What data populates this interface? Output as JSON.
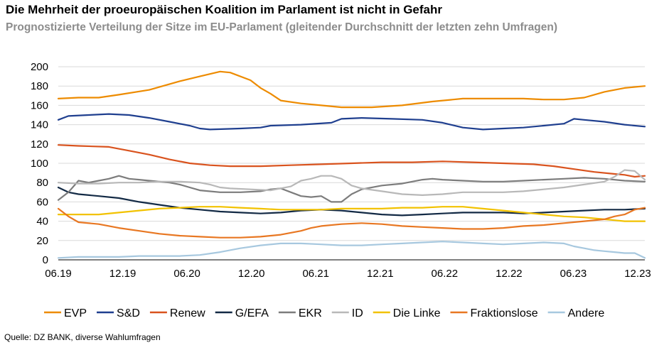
{
  "title": "Die Mehrheit der proeuropäischen Koalition im Parlament ist nicht in Gefahr",
  "subtitle": "Prognostizierte Verteilung der Sitze im EU-Parlament (gleitender Durchschnitt der letzten zehn Umfragen)",
  "source": "Quelle: DZ BANK, diverse Wahlumfragen",
  "chart_data": {
    "type": "line",
    "x_ticks": [
      "06.19",
      "12.19",
      "06.20",
      "12.20",
      "06.21",
      "12.21",
      "06.22",
      "12.22",
      "06.23",
      "12.23"
    ],
    "x_domain": [
      0,
      58
    ],
    "ylim": [
      0,
      200
    ],
    "yticks": [
      0,
      20,
      40,
      60,
      80,
      100,
      120,
      140,
      160,
      180,
      200
    ],
    "grid": "horizontal",
    "legend_position": "bottom",
    "series": [
      {
        "name": "EVP",
        "color": "#ED8B00",
        "points": [
          [
            0,
            167
          ],
          [
            2,
            168
          ],
          [
            4,
            168
          ],
          [
            6,
            171
          ],
          [
            9,
            176
          ],
          [
            12,
            185
          ],
          [
            14,
            190
          ],
          [
            16,
            195
          ],
          [
            17,
            194
          ],
          [
            19,
            186
          ],
          [
            20,
            178
          ],
          [
            21,
            172
          ],
          [
            22,
            165
          ],
          [
            24,
            162
          ],
          [
            26,
            160
          ],
          [
            28,
            158
          ],
          [
            31,
            158
          ],
          [
            34,
            160
          ],
          [
            37,
            164
          ],
          [
            40,
            167
          ],
          [
            43,
            167
          ],
          [
            46,
            167
          ],
          [
            48,
            166
          ],
          [
            50,
            166
          ],
          [
            52,
            168
          ],
          [
            54,
            174
          ],
          [
            56,
            178
          ],
          [
            58,
            180
          ]
        ]
      },
      {
        "name": "S&D",
        "color": "#1F3F8F",
        "points": [
          [
            0,
            145
          ],
          [
            1,
            149
          ],
          [
            3,
            150
          ],
          [
            5,
            151
          ],
          [
            7,
            150
          ],
          [
            9,
            147
          ],
          [
            11,
            143
          ],
          [
            13,
            139
          ],
          [
            14,
            136
          ],
          [
            15,
            135
          ],
          [
            18,
            136
          ],
          [
            20,
            137
          ],
          [
            21,
            139
          ],
          [
            24,
            140
          ],
          [
            27,
            142
          ],
          [
            28,
            146
          ],
          [
            30,
            147
          ],
          [
            33,
            146
          ],
          [
            36,
            145
          ],
          [
            38,
            142
          ],
          [
            40,
            137
          ],
          [
            42,
            135
          ],
          [
            44,
            136
          ],
          [
            46,
            137
          ],
          [
            48,
            139
          ],
          [
            50,
            141
          ],
          [
            51,
            146
          ],
          [
            52,
            145
          ],
          [
            54,
            143
          ],
          [
            56,
            140
          ],
          [
            58,
            138
          ]
        ]
      },
      {
        "name": "Renew",
        "color": "#D9531E",
        "points": [
          [
            0,
            119
          ],
          [
            2,
            118
          ],
          [
            5,
            117
          ],
          [
            7,
            113
          ],
          [
            9,
            109
          ],
          [
            11,
            104
          ],
          [
            13,
            100
          ],
          [
            15,
            98
          ],
          [
            17,
            97
          ],
          [
            20,
            97
          ],
          [
            23,
            98
          ],
          [
            26,
            99
          ],
          [
            29,
            100
          ],
          [
            32,
            101
          ],
          [
            35,
            101
          ],
          [
            38,
            102
          ],
          [
            41,
            101
          ],
          [
            44,
            100
          ],
          [
            47,
            99
          ],
          [
            49,
            97
          ],
          [
            51,
            94
          ],
          [
            53,
            91
          ],
          [
            55,
            89
          ],
          [
            56,
            88
          ],
          [
            57,
            86
          ],
          [
            58,
            87
          ]
        ]
      },
      {
        "name": "G/EFA",
        "color": "#132A45",
        "points": [
          [
            0,
            75
          ],
          [
            1,
            70
          ],
          [
            2,
            68
          ],
          [
            4,
            66
          ],
          [
            6,
            64
          ],
          [
            8,
            60
          ],
          [
            10,
            57
          ],
          [
            12,
            54
          ],
          [
            14,
            52
          ],
          [
            16,
            50
          ],
          [
            18,
            49
          ],
          [
            20,
            48
          ],
          [
            22,
            49
          ],
          [
            24,
            51
          ],
          [
            26,
            52
          ],
          [
            28,
            51
          ],
          [
            30,
            49
          ],
          [
            32,
            47
          ],
          [
            34,
            46
          ],
          [
            36,
            47
          ],
          [
            38,
            48
          ],
          [
            40,
            49
          ],
          [
            42,
            49
          ],
          [
            44,
            49
          ],
          [
            46,
            48
          ],
          [
            48,
            49
          ],
          [
            50,
            50
          ],
          [
            52,
            51
          ],
          [
            54,
            52
          ],
          [
            56,
            52
          ],
          [
            58,
            53
          ]
        ]
      },
      {
        "name": "EKR",
        "color": "#7C7C7C",
        "points": [
          [
            0,
            62
          ],
          [
            1,
            70
          ],
          [
            2,
            82
          ],
          [
            3,
            80
          ],
          [
            4,
            82
          ],
          [
            5,
            84
          ],
          [
            6,
            87
          ],
          [
            7,
            84
          ],
          [
            8,
            83
          ],
          [
            9,
            82
          ],
          [
            11,
            80
          ],
          [
            12,
            78
          ],
          [
            13,
            75
          ],
          [
            14,
            72
          ],
          [
            16,
            70
          ],
          [
            18,
            70
          ],
          [
            20,
            71
          ],
          [
            21,
            73
          ],
          [
            22,
            74
          ],
          [
            23,
            70
          ],
          [
            24,
            66
          ],
          [
            25,
            65
          ],
          [
            26,
            66
          ],
          [
            27,
            60
          ],
          [
            28,
            60
          ],
          [
            29,
            68
          ],
          [
            30,
            73
          ],
          [
            32,
            77
          ],
          [
            34,
            79
          ],
          [
            36,
            83
          ],
          [
            37,
            84
          ],
          [
            38,
            83
          ],
          [
            40,
            82
          ],
          [
            42,
            81
          ],
          [
            44,
            81
          ],
          [
            46,
            82
          ],
          [
            48,
            83
          ],
          [
            50,
            84
          ],
          [
            52,
            85
          ],
          [
            54,
            84
          ],
          [
            56,
            82
          ],
          [
            58,
            81
          ]
        ]
      },
      {
        "name": "ID",
        "color": "#B8B8B8",
        "points": [
          [
            0,
            80
          ],
          [
            2,
            79
          ],
          [
            4,
            79
          ],
          [
            6,
            80
          ],
          [
            8,
            80
          ],
          [
            10,
            81
          ],
          [
            12,
            81
          ],
          [
            14,
            80
          ],
          [
            15,
            78
          ],
          [
            16,
            75
          ],
          [
            17,
            74
          ],
          [
            19,
            73
          ],
          [
            21,
            72
          ],
          [
            23,
            76
          ],
          [
            24,
            82
          ],
          [
            25,
            84
          ],
          [
            26,
            87
          ],
          [
            27,
            87
          ],
          [
            28,
            84
          ],
          [
            29,
            77
          ],
          [
            30,
            74
          ],
          [
            32,
            71
          ],
          [
            34,
            68
          ],
          [
            36,
            67
          ],
          [
            38,
            68
          ],
          [
            40,
            70
          ],
          [
            42,
            70
          ],
          [
            44,
            70
          ],
          [
            46,
            71
          ],
          [
            48,
            73
          ],
          [
            50,
            75
          ],
          [
            52,
            78
          ],
          [
            54,
            81
          ],
          [
            55,
            86
          ],
          [
            56,
            93
          ],
          [
            57,
            92
          ],
          [
            58,
            83
          ]
        ]
      },
      {
        "name": "Die Linke",
        "color": "#F2C200",
        "points": [
          [
            0,
            47
          ],
          [
            2,
            47
          ],
          [
            4,
            47
          ],
          [
            6,
            49
          ],
          [
            8,
            51
          ],
          [
            10,
            53
          ],
          [
            12,
            54
          ],
          [
            14,
            55
          ],
          [
            16,
            55
          ],
          [
            18,
            54
          ],
          [
            20,
            53
          ],
          [
            22,
            52
          ],
          [
            24,
            52
          ],
          [
            26,
            52
          ],
          [
            28,
            53
          ],
          [
            30,
            53
          ],
          [
            32,
            53
          ],
          [
            34,
            54
          ],
          [
            36,
            54
          ],
          [
            38,
            55
          ],
          [
            40,
            55
          ],
          [
            42,
            53
          ],
          [
            44,
            51
          ],
          [
            46,
            49
          ],
          [
            48,
            47
          ],
          [
            50,
            45
          ],
          [
            52,
            44
          ],
          [
            54,
            42
          ],
          [
            55,
            41
          ],
          [
            56,
            40
          ],
          [
            58,
            40
          ]
        ]
      },
      {
        "name": "Fraktionslose",
        "color": "#E87722",
        "points": [
          [
            0,
            53
          ],
          [
            1,
            45
          ],
          [
            2,
            39
          ],
          [
            4,
            37
          ],
          [
            6,
            33
          ],
          [
            8,
            30
          ],
          [
            10,
            27
          ],
          [
            12,
            25
          ],
          [
            14,
            24
          ],
          [
            16,
            23
          ],
          [
            18,
            23
          ],
          [
            20,
            24
          ],
          [
            22,
            26
          ],
          [
            24,
            30
          ],
          [
            25,
            33
          ],
          [
            26,
            35
          ],
          [
            28,
            37
          ],
          [
            30,
            38
          ],
          [
            32,
            37
          ],
          [
            34,
            35
          ],
          [
            36,
            34
          ],
          [
            38,
            33
          ],
          [
            40,
            32
          ],
          [
            42,
            32
          ],
          [
            44,
            33
          ],
          [
            46,
            35
          ],
          [
            48,
            36
          ],
          [
            50,
            38
          ],
          [
            52,
            40
          ],
          [
            54,
            42
          ],
          [
            55,
            45
          ],
          [
            56,
            47
          ],
          [
            57,
            52
          ],
          [
            58,
            54
          ]
        ]
      },
      {
        "name": "Andere",
        "color": "#A7C8DF",
        "points": [
          [
            0,
            2
          ],
          [
            2,
            3
          ],
          [
            4,
            3
          ],
          [
            6,
            3
          ],
          [
            8,
            4
          ],
          [
            10,
            4
          ],
          [
            12,
            4
          ],
          [
            14,
            5
          ],
          [
            16,
            8
          ],
          [
            18,
            12
          ],
          [
            20,
            15
          ],
          [
            22,
            17
          ],
          [
            24,
            17
          ],
          [
            26,
            16
          ],
          [
            28,
            15
          ],
          [
            30,
            15
          ],
          [
            32,
            16
          ],
          [
            34,
            17
          ],
          [
            36,
            18
          ],
          [
            38,
            19
          ],
          [
            40,
            18
          ],
          [
            42,
            17
          ],
          [
            44,
            16
          ],
          [
            46,
            17
          ],
          [
            48,
            18
          ],
          [
            50,
            17
          ],
          [
            51,
            14
          ],
          [
            52,
            12
          ],
          [
            53,
            10
          ],
          [
            54,
            9
          ],
          [
            55,
            8
          ],
          [
            56,
            7
          ],
          [
            57,
            7
          ],
          [
            58,
            2
          ]
        ]
      }
    ]
  }
}
